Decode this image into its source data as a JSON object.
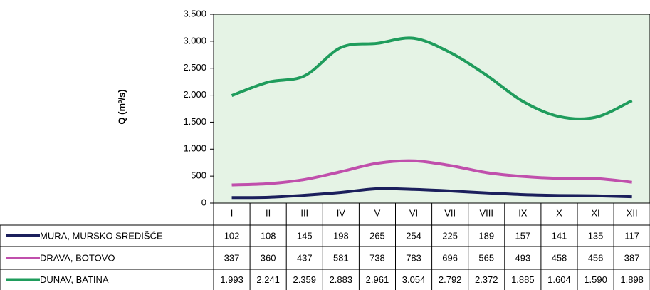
{
  "chart_data": {
    "type": "line",
    "y_label": "Q (m³/s)",
    "categories": [
      "I",
      "II",
      "III",
      "IV",
      "V",
      "VI",
      "VII",
      "VIII",
      "IX",
      "X",
      "XI",
      "XII"
    ],
    "series": [
      {
        "name": "MURA, MURSKO SREDIŠĆE",
        "color": "#1b1f5c",
        "values": [
          102,
          108,
          145,
          198,
          265,
          254,
          225,
          189,
          157,
          141,
          135,
          117
        ]
      },
      {
        "name": "DRAVA, BOTOVO",
        "color": "#c04fac",
        "values": [
          337,
          360,
          437,
          581,
          738,
          783,
          696,
          565,
          493,
          458,
          456,
          387
        ]
      },
      {
        "name": "DUNAV, BATINA",
        "color": "#1f9c5c",
        "values": [
          1993,
          2241,
          2359,
          2883,
          2961,
          3054,
          2792,
          2372,
          1885,
          1604,
          1590,
          1898
        ],
        "value_labels": [
          "1.993",
          "2.241",
          "2.359",
          "2.883",
          "2.961",
          "3.054",
          "2.792",
          "2.372",
          "1.885",
          "1.604",
          "1.590",
          "1.898"
        ]
      }
    ],
    "ylim": [
      0,
      3500
    ],
    "yticks": [
      0,
      500,
      {
        "value": 1000,
        "label": "1.000"
      },
      {
        "value": 1500,
        "label": "1.500"
      },
      {
        "value": 2000,
        "label": "2.000"
      },
      {
        "value": 2500,
        "label": "2.500"
      },
      {
        "value": 3000,
        "label": "3.000"
      },
      {
        "value": 3500,
        "label": "3.500"
      }
    ],
    "grid": false
  }
}
